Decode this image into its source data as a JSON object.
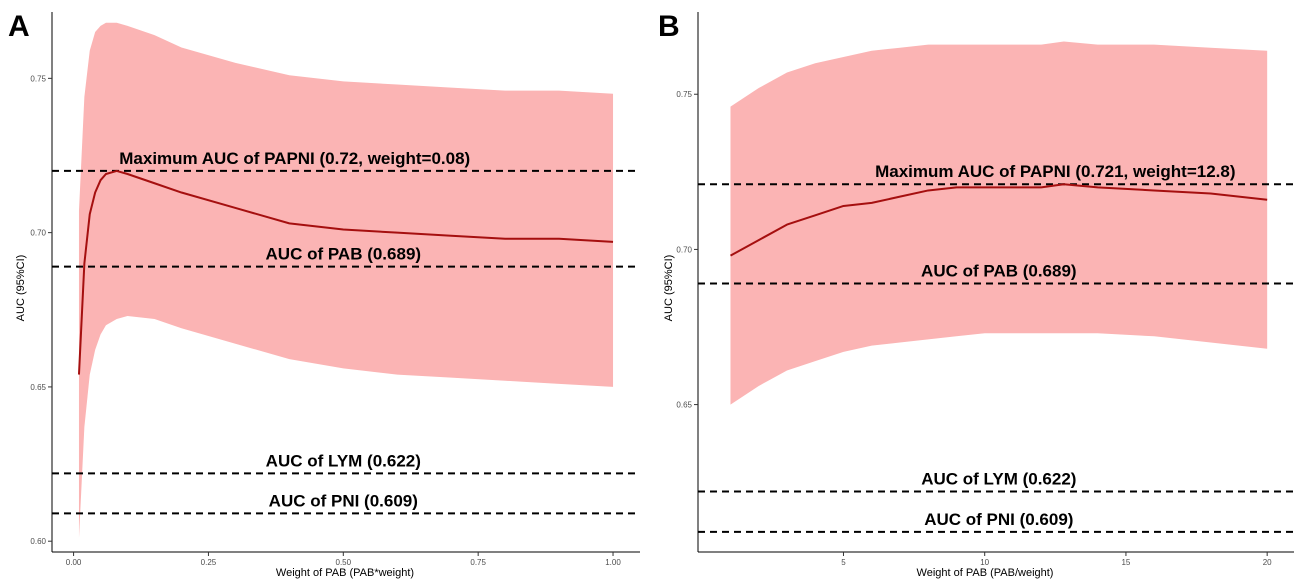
{
  "colors": {
    "ribbon": "#fbb4b4",
    "line": "#a50f0f",
    "ref": "#000000"
  },
  "chart_data": [
    {
      "panel": "A",
      "type": "line",
      "xlabel": "Weight of PAB (PAB*weight)",
      "ylabel": "AUC (95%CI)",
      "xlim": [
        -0.04,
        1.05
      ],
      "ylim": [
        0.5965,
        0.7715
      ],
      "xticks": [
        0.0,
        0.25,
        0.5,
        0.75,
        1.0
      ],
      "xtick_labels": [
        "0.00",
        "0.25",
        "0.50",
        "0.75",
        "1.00"
      ],
      "yticks": [
        0.6,
        0.65,
        0.7,
        0.75
      ],
      "ytick_labels": [
        "0.60",
        "0.65",
        "0.70",
        "0.75"
      ],
      "grid": false,
      "series": [
        {
          "x": [
            0.01,
            0.02,
            0.03,
            0.04,
            0.05,
            0.06,
            0.08,
            0.1,
            0.15,
            0.2,
            0.3,
            0.4,
            0.5,
            0.6,
            0.7,
            0.8,
            0.9,
            1.0
          ],
          "y": [
            0.654,
            0.69,
            0.706,
            0.713,
            0.717,
            0.719,
            0.72,
            0.719,
            0.716,
            0.713,
            0.708,
            0.703,
            0.701,
            0.7,
            0.699,
            0.698,
            0.698,
            0.697
          ],
          "lower": [
            0.601,
            0.637,
            0.654,
            0.662,
            0.667,
            0.67,
            0.672,
            0.673,
            0.672,
            0.669,
            0.664,
            0.659,
            0.656,
            0.654,
            0.653,
            0.652,
            0.651,
            0.65
          ],
          "upper": [
            0.707,
            0.744,
            0.759,
            0.765,
            0.767,
            0.768,
            0.768,
            0.767,
            0.764,
            0.76,
            0.755,
            0.751,
            0.749,
            0.748,
            0.747,
            0.746,
            0.746,
            0.745
          ]
        }
      ],
      "reference_lines": [
        {
          "y": 0.72,
          "label": "Maximum AUC of PAPNI (0.72, weight=0.08)",
          "label_x": 0.41
        },
        {
          "y": 0.689,
          "label": "AUC of PAB (0.689)",
          "label_x": 0.5
        },
        {
          "y": 0.622,
          "label": "AUC of LYM (0.622)",
          "label_x": 0.5
        },
        {
          "y": 0.609,
          "label": "AUC of PNI (0.609)",
          "label_x": 0.5
        }
      ]
    },
    {
      "panel": "B",
      "type": "line",
      "xlabel": "Weight of PAB (PAB/weight)",
      "ylabel": "AUC (95%CI)",
      "xlim": [
        -0.15,
        20.95
      ],
      "ylim": [
        0.6025,
        0.7765
      ],
      "xticks": [
        5,
        10,
        15,
        20
      ],
      "xtick_labels": [
        "5",
        "10",
        "15",
        "20"
      ],
      "yticks": [
        0.65,
        0.7,
        0.75
      ],
      "ytick_labels": [
        "0.65",
        "0.70",
        "0.75"
      ],
      "grid": false,
      "series": [
        {
          "x": [
            1,
            2,
            3,
            4,
            5,
            6,
            7,
            8,
            9,
            10,
            11,
            12,
            12.8,
            14,
            16,
            18,
            20
          ],
          "y": [
            0.698,
            0.703,
            0.708,
            0.711,
            0.714,
            0.715,
            0.717,
            0.719,
            0.72,
            0.72,
            0.72,
            0.72,
            0.721,
            0.72,
            0.719,
            0.718,
            0.716
          ],
          "lower": [
            0.65,
            0.656,
            0.661,
            0.664,
            0.667,
            0.669,
            0.67,
            0.671,
            0.672,
            0.673,
            0.673,
            0.673,
            0.673,
            0.673,
            0.672,
            0.67,
            0.668
          ],
          "upper": [
            0.746,
            0.752,
            0.757,
            0.76,
            0.762,
            0.764,
            0.765,
            0.766,
            0.766,
            0.766,
            0.766,
            0.766,
            0.767,
            0.766,
            0.766,
            0.765,
            0.764
          ]
        }
      ],
      "reference_lines": [
        {
          "y": 0.721,
          "label": "Maximum AUC of PAPNI (0.721, weight=12.8)",
          "label_x": 12.5
        },
        {
          "y": 0.689,
          "label": "AUC of PAB (0.689)",
          "label_x": 10.5
        },
        {
          "y": 0.622,
          "label": "AUC of LYM (0.622)",
          "label_x": 10.5
        },
        {
          "y": 0.609,
          "label": "AUC of PNI (0.609)",
          "label_x": 10.5
        }
      ]
    }
  ]
}
